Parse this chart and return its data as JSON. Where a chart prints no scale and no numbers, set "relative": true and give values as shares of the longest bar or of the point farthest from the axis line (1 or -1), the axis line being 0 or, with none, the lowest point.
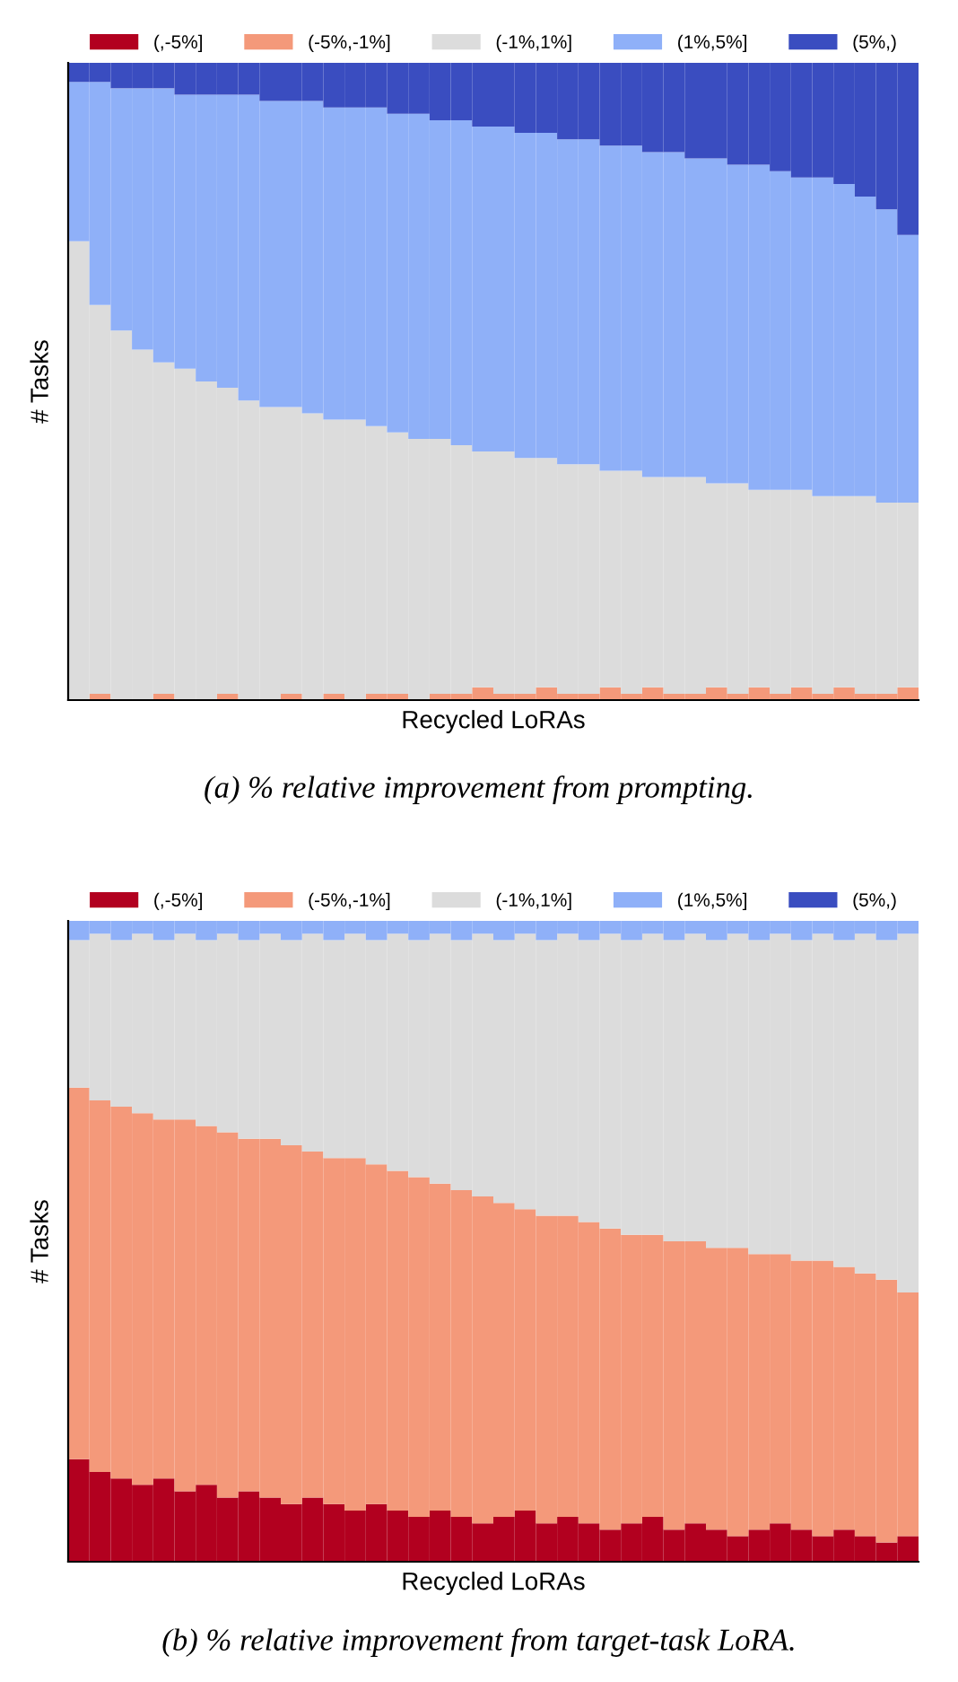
{
  "chart_data": [
    {
      "type": "bar",
      "stacked": true,
      "relative": true,
      "legend": "top",
      "tick_labels": false,
      "xlabel": "Recycled LoRAs",
      "ylabel": "# Tasks",
      "annotations": [
        "(a) % relative improvement from prompting."
      ],
      "categories": [
        null,
        null,
        null,
        null,
        null,
        null,
        null,
        null,
        null,
        null,
        null,
        null,
        null,
        null,
        null,
        null,
        null,
        null,
        null,
        null,
        null,
        null,
        null,
        null,
        null,
        null,
        null,
        null,
        null,
        null,
        null,
        null,
        null,
        null,
        null,
        null,
        null,
        null,
        null,
        null
      ],
      "series": [
        {
          "name": "(,-5%]",
          "color": "#b2001f",
          "values": [
            0,
            0,
            0,
            0,
            0,
            0,
            0,
            0,
            0,
            0,
            0,
            0,
            0,
            0,
            0,
            0,
            0,
            0,
            0,
            0,
            0,
            0,
            0,
            0,
            0,
            0,
            0,
            0,
            0,
            0,
            0,
            0,
            0,
            0,
            0,
            0,
            0,
            0,
            0,
            0
          ]
        },
        {
          "name": "(-5%,-1%]",
          "color": "#f4997a",
          "values": [
            0,
            0.01,
            0,
            0,
            0.01,
            0,
            0,
            0.01,
            0,
            0,
            0.01,
            0,
            0.01,
            0,
            0.01,
            0.01,
            0,
            0.01,
            0.01,
            0.02,
            0.01,
            0.01,
            0.02,
            0.01,
            0.01,
            0.02,
            0.01,
            0.02,
            0.01,
            0.01,
            0.02,
            0.01,
            0.02,
            0.01,
            0.02,
            0.01,
            0.02,
            0.01,
            0.01,
            0.02
          ]
        },
        {
          "name": "(-1%,1%]",
          "color": "#dcdcdc",
          "values": [
            0.72,
            0.61,
            0.58,
            0.55,
            0.52,
            0.52,
            0.5,
            0.48,
            0.47,
            0.46,
            0.45,
            0.45,
            0.43,
            0.44,
            0.42,
            0.41,
            0.41,
            0.4,
            0.39,
            0.37,
            0.38,
            0.37,
            0.36,
            0.36,
            0.36,
            0.34,
            0.35,
            0.33,
            0.34,
            0.34,
            0.32,
            0.33,
            0.31,
            0.32,
            0.31,
            0.31,
            0.3,
            0.31,
            0.3,
            0.29
          ]
        },
        {
          "name": "(1%,5%]",
          "color": "#8fb0f8",
          "values": [
            0.25,
            0.35,
            0.38,
            0.41,
            0.43,
            0.43,
            0.45,
            0.46,
            0.48,
            0.48,
            0.48,
            0.49,
            0.49,
            0.49,
            0.5,
            0.5,
            0.51,
            0.5,
            0.51,
            0.51,
            0.51,
            0.51,
            0.51,
            0.51,
            0.51,
            0.51,
            0.51,
            0.51,
            0.51,
            0.5,
            0.51,
            0.5,
            0.51,
            0.5,
            0.49,
            0.5,
            0.49,
            0.47,
            0.46,
            0.42
          ]
        },
        {
          "name": "(5%,)",
          "color": "#3a4dc0",
          "values": [
            0.03,
            0.03,
            0.04,
            0.04,
            0.04,
            0.05,
            0.05,
            0.05,
            0.05,
            0.06,
            0.06,
            0.06,
            0.07,
            0.07,
            0.07,
            0.08,
            0.08,
            0.09,
            0.09,
            0.1,
            0.1,
            0.11,
            0.11,
            0.12,
            0.12,
            0.13,
            0.13,
            0.14,
            0.14,
            0.15,
            0.15,
            0.16,
            0.16,
            0.17,
            0.18,
            0.18,
            0.19,
            0.21,
            0.23,
            0.27
          ]
        }
      ]
    },
    {
      "type": "bar",
      "stacked": true,
      "relative": true,
      "legend": "top",
      "tick_labels": false,
      "xlabel": "Recycled LoRAs",
      "ylabel": "# Tasks",
      "annotations": [
        "(b) % relative improvement from target-task LoRA."
      ],
      "categories": [
        null,
        null,
        null,
        null,
        null,
        null,
        null,
        null,
        null,
        null,
        null,
        null,
        null,
        null,
        null,
        null,
        null,
        null,
        null,
        null,
        null,
        null,
        null,
        null,
        null,
        null,
        null,
        null,
        null,
        null,
        null,
        null,
        null,
        null,
        null,
        null,
        null,
        null,
        null,
        null
      ],
      "series": [
        {
          "name": "(,-5%]",
          "color": "#b2001f",
          "values": [
            0.16,
            0.14,
            0.13,
            0.12,
            0.13,
            0.11,
            0.12,
            0.1,
            0.11,
            0.1,
            0.09,
            0.1,
            0.09,
            0.08,
            0.09,
            0.08,
            0.07,
            0.08,
            0.07,
            0.06,
            0.07,
            0.08,
            0.06,
            0.07,
            0.06,
            0.05,
            0.06,
            0.07,
            0.05,
            0.06,
            0.05,
            0.04,
            0.05,
            0.06,
            0.05,
            0.04,
            0.05,
            0.04,
            0.03,
            0.04
          ]
        },
        {
          "name": "(-5%,-1%]",
          "color": "#f4997a",
          "values": [
            0.58,
            0.58,
            0.58,
            0.58,
            0.56,
            0.58,
            0.56,
            0.57,
            0.55,
            0.56,
            0.56,
            0.54,
            0.54,
            0.55,
            0.53,
            0.53,
            0.53,
            0.51,
            0.51,
            0.51,
            0.49,
            0.47,
            0.48,
            0.47,
            0.47,
            0.47,
            0.45,
            0.44,
            0.45,
            0.44,
            0.44,
            0.45,
            0.43,
            0.42,
            0.42,
            0.43,
            0.41,
            0.41,
            0.41,
            0.38
          ]
        },
        {
          "name": "(-1%,1%]",
          "color": "#dcdcdc",
          "values": [
            0.23,
            0.26,
            0.26,
            0.28,
            0.28,
            0.29,
            0.29,
            0.31,
            0.31,
            0.32,
            0.32,
            0.34,
            0.34,
            0.35,
            0.35,
            0.37,
            0.37,
            0.39,
            0.39,
            0.41,
            0.41,
            0.43,
            0.43,
            0.44,
            0.44,
            0.46,
            0.46,
            0.47,
            0.47,
            0.48,
            0.48,
            0.49,
            0.49,
            0.5,
            0.5,
            0.51,
            0.51,
            0.53,
            0.53,
            0.56
          ]
        },
        {
          "name": "(1%,5%]",
          "color": "#8fb0f8",
          "values": [
            0.03,
            0.02,
            0.03,
            0.02,
            0.03,
            0.02,
            0.03,
            0.02,
            0.03,
            0.02,
            0.03,
            0.02,
            0.03,
            0.02,
            0.03,
            0.02,
            0.03,
            0.02,
            0.03,
            0.02,
            0.03,
            0.02,
            0.03,
            0.02,
            0.03,
            0.02,
            0.03,
            0.02,
            0.03,
            0.02,
            0.03,
            0.02,
            0.03,
            0.02,
            0.03,
            0.02,
            0.03,
            0.02,
            0.03,
            0.02
          ]
        },
        {
          "name": "(5%,)",
          "color": "#3a4dc0",
          "values": [
            0,
            0,
            0,
            0,
            0,
            0,
            0,
            0,
            0,
            0,
            0,
            0,
            0,
            0,
            0,
            0,
            0,
            0,
            0,
            0,
            0,
            0,
            0,
            0,
            0,
            0,
            0,
            0,
            0,
            0,
            0,
            0,
            0,
            0,
            0,
            0,
            0,
            0,
            0,
            0
          ]
        }
      ]
    }
  ]
}
